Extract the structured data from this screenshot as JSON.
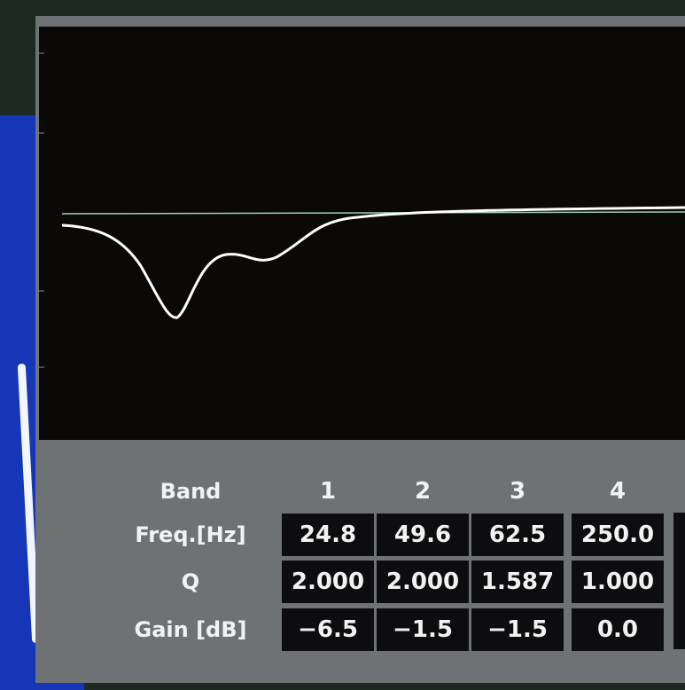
{
  "table": {
    "header": [
      "Band",
      "1",
      "2",
      "3",
      "4"
    ],
    "rows": [
      [
        "Freq.[Hz]",
        "24.8",
        "49.6",
        "62.5",
        "250.0"
      ],
      [
        "Q",
        "2.000",
        "2.000",
        "1.587",
        "1.000"
      ],
      [
        "Gain [dB]",
        "−6.5",
        "−1.5",
        "−1.5",
        "0.0"
      ]
    ]
  }
}
